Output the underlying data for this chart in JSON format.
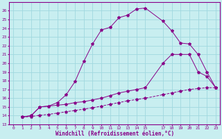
{
  "xlabel": "Windchill (Refroidissement éolien,°C)",
  "bg_color": "#c8eef0",
  "grid_color": "#a0d8df",
  "line_color": "#880088",
  "xlim": [
    -0.5,
    23.5
  ],
  "ylim": [
    13,
    27
  ],
  "xticks": [
    0,
    1,
    2,
    3,
    4,
    5,
    6,
    7,
    8,
    9,
    10,
    11,
    12,
    13,
    14,
    15,
    17,
    18,
    19,
    20,
    21,
    22,
    23
  ],
  "yticks": [
    13,
    14,
    15,
    16,
    17,
    18,
    19,
    20,
    21,
    22,
    23,
    24,
    25,
    26
  ],
  "curve1_x": [
    1,
    2,
    3,
    4,
    5,
    6,
    7,
    8,
    9,
    10,
    11,
    12,
    13,
    14,
    15,
    17,
    18,
    19,
    20,
    21,
    22,
    23
  ],
  "curve1_y": [
    13.85,
    13.9,
    14.05,
    14.15,
    14.3,
    14.45,
    14.6,
    14.75,
    14.9,
    15.1,
    15.3,
    15.5,
    15.7,
    15.85,
    16.0,
    16.4,
    16.6,
    16.8,
    17.0,
    17.1,
    17.2,
    17.2
  ],
  "curve2_x": [
    1,
    2,
    3,
    4,
    5,
    6,
    7,
    8,
    9,
    10,
    11,
    12,
    13,
    14,
    15,
    17,
    18,
    19,
    20,
    21,
    22,
    23
  ],
  "curve2_y": [
    13.85,
    14.0,
    15.0,
    15.1,
    15.2,
    15.3,
    15.5,
    15.6,
    15.8,
    16.0,
    16.3,
    16.6,
    16.8,
    17.0,
    17.2,
    20.0,
    21.0,
    21.0,
    21.0,
    19.0,
    18.5,
    17.2
  ],
  "curve3_x": [
    1,
    2,
    3,
    4,
    5,
    6,
    7,
    8,
    9,
    10,
    11,
    12,
    13,
    14,
    15,
    17,
    18,
    19,
    20,
    21,
    22,
    23
  ],
  "curve3_y": [
    13.85,
    14.0,
    15.0,
    15.1,
    15.5,
    16.4,
    17.9,
    20.2,
    22.2,
    23.8,
    24.1,
    25.2,
    25.5,
    26.2,
    26.3,
    24.8,
    23.7,
    22.3,
    22.2,
    21.0,
    19.0,
    17.2
  ]
}
